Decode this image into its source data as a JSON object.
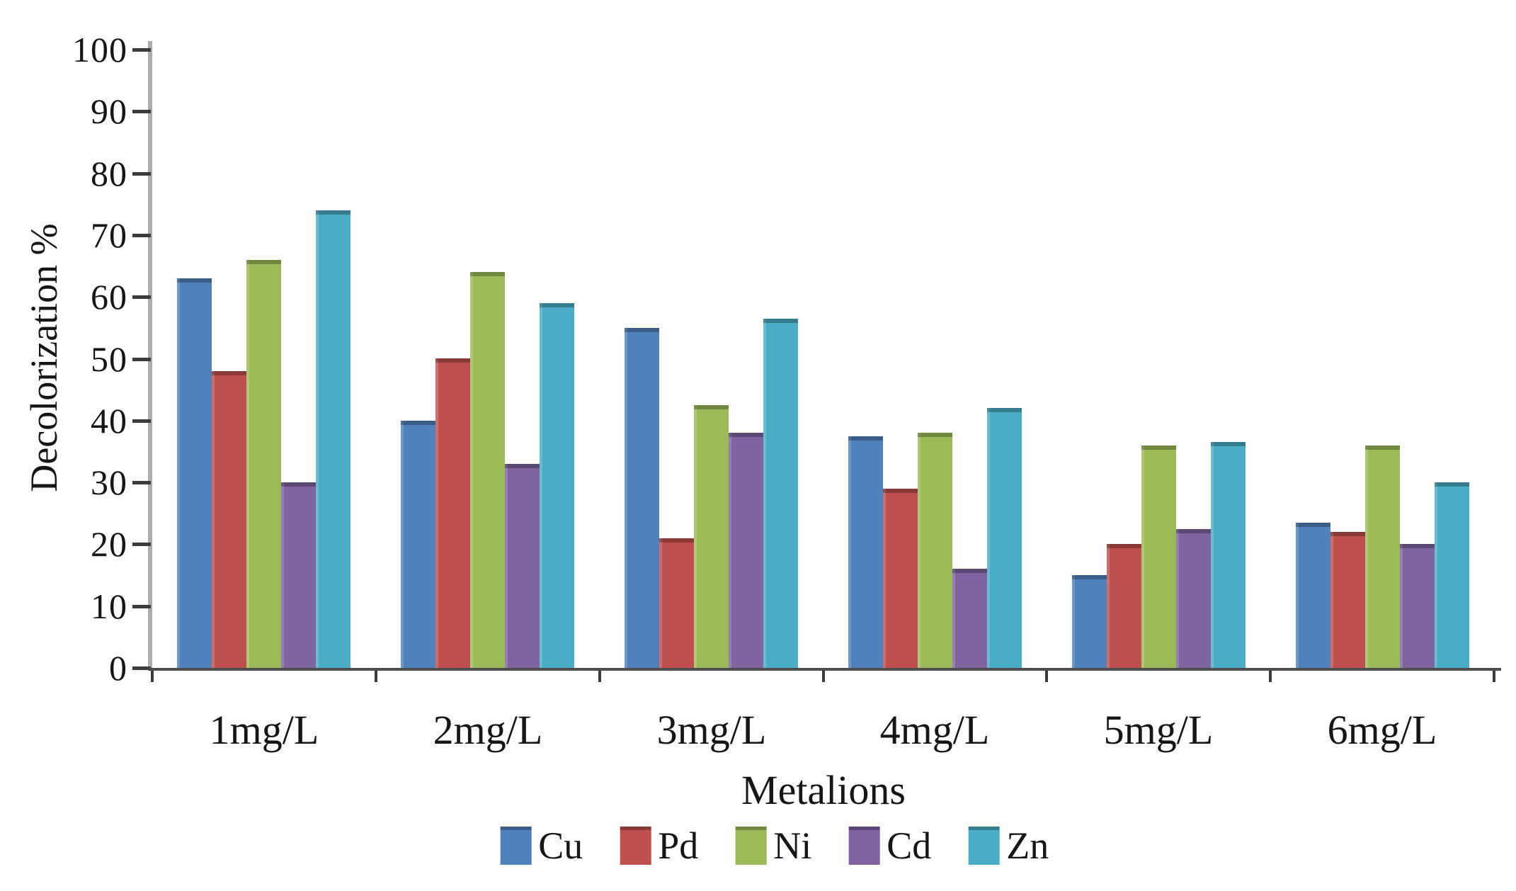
{
  "chart_data": {
    "type": "bar",
    "title": "",
    "xlabel": "Metalions",
    "ylabel": "Decolorization %",
    "categories": [
      "1mg/L",
      "2mg/L",
      "3mg/L",
      "4mg/L",
      "5mg/L",
      "6mg/L"
    ],
    "series": [
      {
        "name": "Cu",
        "color": "#4F81BD",
        "values": [
          63,
          40,
          55,
          37.5,
          15,
          23.5
        ]
      },
      {
        "name": "Pd",
        "color": "#C0504D",
        "values": [
          48,
          50,
          21,
          29,
          20,
          22
        ]
      },
      {
        "name": "Ni",
        "color": "#9BBB59",
        "values": [
          66,
          64,
          42.5,
          38,
          36,
          36
        ]
      },
      {
        "name": "Cd",
        "color": "#8064A2",
        "values": [
          30,
          33,
          38,
          16,
          22.5,
          20
        ]
      },
      {
        "name": "Zn",
        "color": "#4BACC6",
        "values": [
          74,
          59,
          56.5,
          42,
          36.5,
          30
        ]
      }
    ],
    "ylim": [
      0,
      100
    ],
    "yticks": [
      0,
      10,
      20,
      30,
      40,
      50,
      60,
      70,
      80,
      90,
      100
    ],
    "grid": false,
    "legend_position": "bottom",
    "axis_color": "#4d4d4d",
    "text_color": "#161616"
  }
}
